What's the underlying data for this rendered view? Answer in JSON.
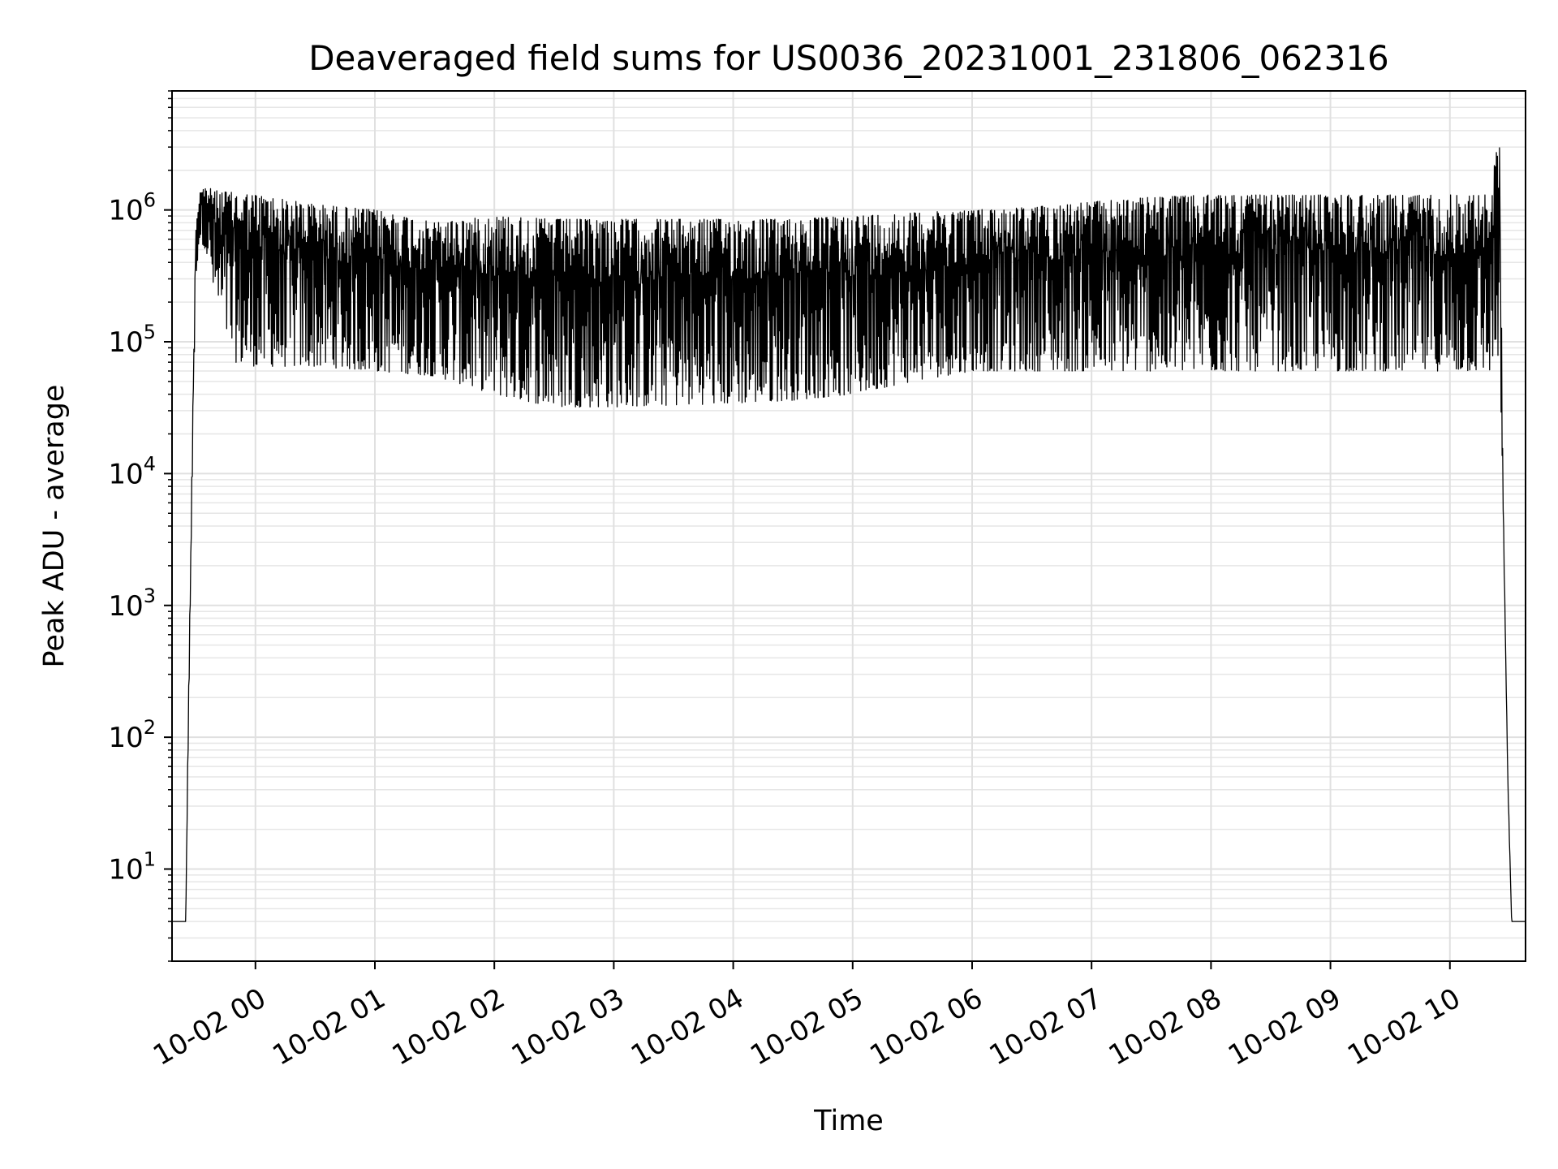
{
  "chart_data": {
    "type": "line",
    "title": "Deaveraged field sums for US0036_20231001_231806_062316",
    "xlabel": "Time",
    "ylabel": "Peak ADU - average",
    "x_axis": {
      "kind": "datetime",
      "range": [
        "2023-10-01 23:18:06",
        "2023-10-02 10:38:00"
      ],
      "ticks": [
        {
          "value": "2023-10-02 00:00",
          "label": "10-02 00"
        },
        {
          "value": "2023-10-02 01:00",
          "label": "10-02 01"
        },
        {
          "value": "2023-10-02 02:00",
          "label": "10-02 02"
        },
        {
          "value": "2023-10-02 03:00",
          "label": "10-02 03"
        },
        {
          "value": "2023-10-02 04:00",
          "label": "10-02 04"
        },
        {
          "value": "2023-10-02 05:00",
          "label": "10-02 05"
        },
        {
          "value": "2023-10-02 06:00",
          "label": "10-02 06"
        },
        {
          "value": "2023-10-02 07:00",
          "label": "10-02 07"
        },
        {
          "value": "2023-10-02 08:00",
          "label": "10-02 08"
        },
        {
          "value": "2023-10-02 09:00",
          "label": "10-02 09"
        },
        {
          "value": "2023-10-02 10:00",
          "label": "10-02 10"
        }
      ]
    },
    "y_axis": {
      "scale": "log",
      "range": [
        2,
        8000000
      ],
      "ticks": [
        {
          "value": 10,
          "base": "10",
          "exp": "1"
        },
        {
          "value": 100,
          "base": "10",
          "exp": "2"
        },
        {
          "value": 1000,
          "base": "10",
          "exp": "3"
        },
        {
          "value": 10000,
          "base": "10",
          "exp": "4"
        },
        {
          "value": 100000,
          "base": "10",
          "exp": "5"
        },
        {
          "value": 1000000,
          "base": "10",
          "exp": "6"
        }
      ]
    },
    "grid": true,
    "series": [
      {
        "color": "#000000",
        "note_shape": "noisy envelope",
        "x": [
          "2023-10-01 23:18:06",
          "2023-10-01 23:25",
          "2023-10-01 23:26",
          "2023-10-01 23:28",
          "2023-10-01 23:30",
          "2023-10-01 23:32",
          "2023-10-01 23:35",
          "2023-10-01 23:40",
          "2023-10-01 23:50",
          "2023-10-02 00:00",
          "2023-10-02 00:30",
          "2023-10-02 01:00",
          "2023-10-02 01:30",
          "2023-10-02 02:00",
          "2023-10-02 02:30",
          "2023-10-02 03:00",
          "2023-10-02 03:30",
          "2023-10-02 04:00",
          "2023-10-02 04:30",
          "2023-10-02 05:00",
          "2023-10-02 05:30",
          "2023-10-02 06:00",
          "2023-10-02 06:30",
          "2023-10-02 07:00",
          "2023-10-02 07:30",
          "2023-10-02 08:00",
          "2023-10-02 08:30",
          "2023-10-02 09:00",
          "2023-10-02 09:30",
          "2023-10-02 10:00",
          "2023-10-02 10:20",
          "2023-10-02 10:25",
          "2023-10-02 10:27",
          "2023-10-02 10:29",
          "2023-10-02 10:31",
          "2023-10-02 10:33",
          "2023-10-02 10:38"
        ],
        "y_min": [
          4,
          4,
          50,
          5000,
          300000,
          600000,
          500000,
          200000,
          70000,
          65000,
          65000,
          60000,
          55000,
          40000,
          32000,
          32000,
          33000,
          34000,
          36000,
          40000,
          50000,
          60000,
          60000,
          60000,
          60000,
          60000,
          60000,
          60000,
          60000,
          60000,
          60000,
          80000,
          3000,
          50,
          4,
          4,
          4
        ],
        "y_max": [
          4,
          4,
          80,
          10000,
          800000,
          1400000,
          1500000,
          1400000,
          1350000,
          1300000,
          1100000,
          1000000,
          800000,
          900000,
          850000,
          850000,
          850000,
          850000,
          850000,
          900000,
          950000,
          1000000,
          1050000,
          1150000,
          1250000,
          1300000,
          1300000,
          1300000,
          1300000,
          1300000,
          1300000,
          4000000,
          4000,
          60,
          4,
          4,
          4
        ]
      }
    ]
  }
}
